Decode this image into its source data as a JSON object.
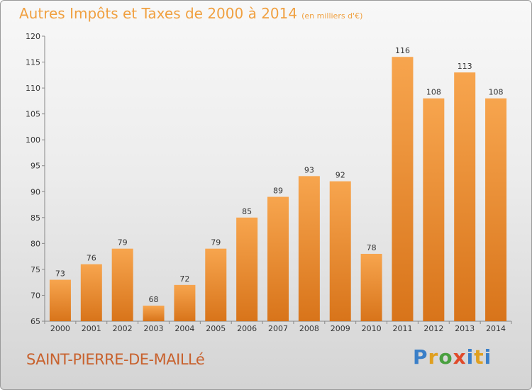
{
  "header": {
    "title": "Autres Impôts et Taxes de 2000 à 2014",
    "unit": "(en milliers d'€)"
  },
  "footer": {
    "commune": "SAINT-PIERRE-DE-MAILLé",
    "logo": "Proxiti"
  },
  "colors": {
    "bar_top": "#f7a54e",
    "bar_bottom": "#d8741a",
    "title": "#f0a040",
    "commune": "#c8622e"
  },
  "chart_data": {
    "type": "bar",
    "title": "Autres Impôts et Taxes de 2000 à 2014",
    "subtitle": "(en milliers d'€)",
    "categories": [
      "2000",
      "2001",
      "2002",
      "2003",
      "2004",
      "2005",
      "2006",
      "2007",
      "2008",
      "2009",
      "2010",
      "2011",
      "2012",
      "2013",
      "2014"
    ],
    "values": [
      73,
      76,
      79,
      68,
      72,
      79,
      85,
      89,
      93,
      92,
      78,
      116,
      108,
      113,
      108
    ],
    "ylim": [
      65,
      120
    ],
    "yticks": [
      65,
      70,
      75,
      80,
      85,
      90,
      95,
      100,
      105,
      110,
      115,
      120
    ],
    "grid": false,
    "legend": "none"
  }
}
